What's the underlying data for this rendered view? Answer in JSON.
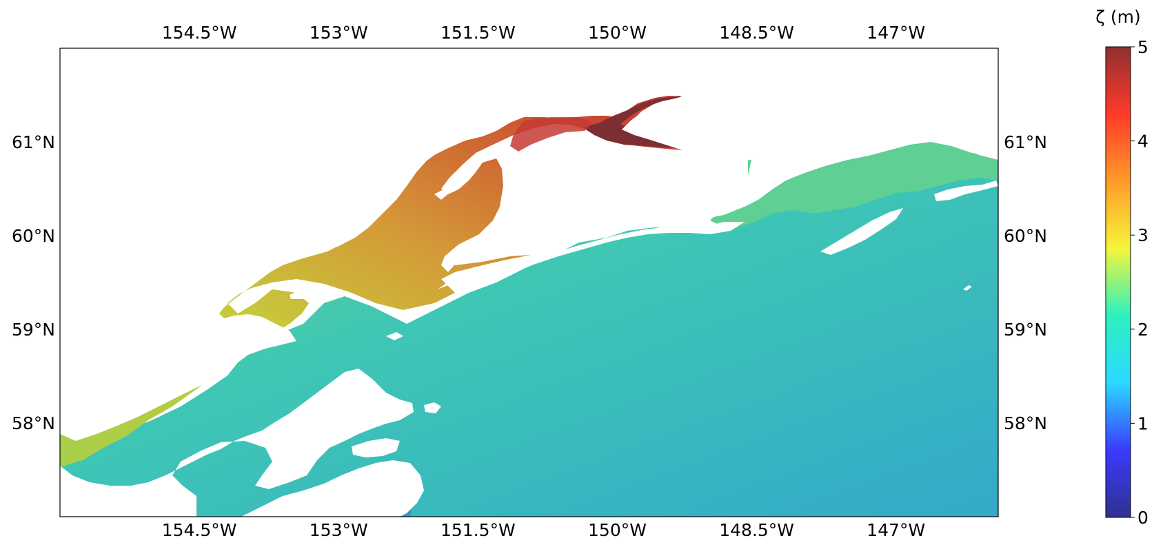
{
  "map": {
    "lon_range_deg": [
      -156.0,
      -145.9
    ],
    "lat_range_deg": [
      57.0,
      62.0
    ],
    "x_ticks": [
      {
        "lon": -154.5,
        "label": "154.5°W"
      },
      {
        "lon": -153.0,
        "label": "153°W"
      },
      {
        "lon": -151.5,
        "label": "151.5°W"
      },
      {
        "lon": -150.0,
        "label": "150°W"
      },
      {
        "lon": -148.5,
        "label": "148.5°W"
      },
      {
        "lon": -147.0,
        "label": "147°W"
      }
    ],
    "y_ticks": [
      {
        "lat": 61.0,
        "label": "61°N"
      },
      {
        "lat": 60.0,
        "label": "60°N"
      },
      {
        "lat": 59.0,
        "label": "59°N"
      },
      {
        "lat": 58.0,
        "label": "58°N"
      }
    ],
    "land_color": "#ffffff",
    "frame_color": "#000000"
  },
  "colorbar": {
    "title": "ζ (m)",
    "min": 0,
    "max": 5,
    "ticks": [
      "0",
      "1",
      "2",
      "3",
      "4",
      "5"
    ],
    "colormap": [
      "#30308f",
      "#3a3aff",
      "#2bd9ff",
      "#2df0c0",
      "#f5f53a",
      "#ff9a2a",
      "#ff3a2a",
      "#8f3030"
    ]
  },
  "field_colors": {
    "upper_inlet": "#7d2e33",
    "inlet_red": "#c53b33",
    "inlet_orange": "#cf6a33",
    "inlet_mid": "#d49a38",
    "inlet_yellow": "#c7c83a",
    "shelf_green": "#6fcf82",
    "sound_green": "#5fcf94",
    "gulf_teal": "#3fc7b4",
    "gulf_blue": "#33a9c9",
    "kodiak_blue": "#2e95c2"
  }
}
